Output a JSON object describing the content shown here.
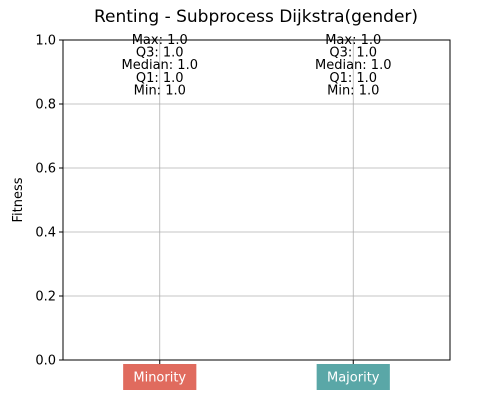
{
  "chart_data": {
    "type": "box",
    "title": "Renting - Subprocess Dijkstra(gender)",
    "xlabel": "",
    "ylabel": "Fitness",
    "ylim": [
      0.0,
      1.0
    ],
    "yticks": [
      "0.0",
      "0.2",
      "0.4",
      "0.6",
      "0.8",
      "1.0"
    ],
    "grid": true,
    "categories": [
      "Minority",
      "Majority"
    ],
    "category_colors": [
      "#e06b5e",
      "#5aa7a7"
    ],
    "series": [
      {
        "category": "Minority",
        "max": 1.0,
        "q3": 1.0,
        "median": 1.0,
        "q1": 1.0,
        "min": 1.0,
        "labels": [
          "Max: 1.0",
          "Q3: 1.0",
          "Median: 1.0",
          "Q1: 1.0",
          "Min: 1.0"
        ]
      },
      {
        "category": "Majority",
        "max": 1.0,
        "q3": 1.0,
        "median": 1.0,
        "q1": 1.0,
        "min": 1.0,
        "labels": [
          "Max: 1.0",
          "Q3: 1.0",
          "Median: 1.0",
          "Q1: 1.0",
          "Min: 1.0"
        ]
      }
    ]
  }
}
